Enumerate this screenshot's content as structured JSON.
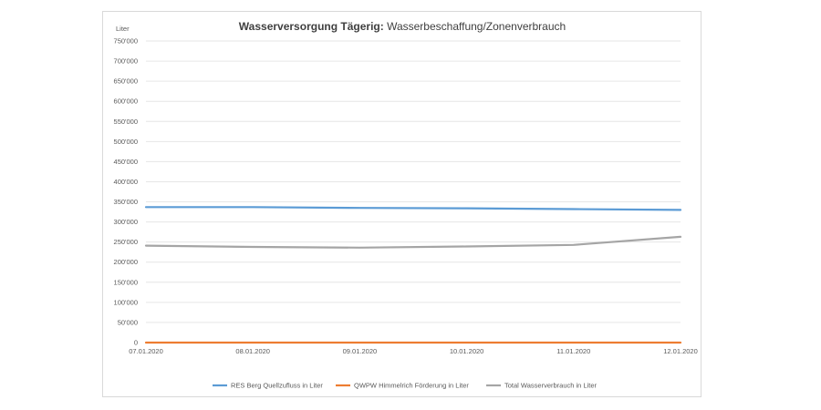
{
  "chart_data": {
    "type": "line",
    "title_bold": "Wasserversorgung Tägerig:",
    "title_rest": " Wasserbeschaffung/Zonenverbrauch",
    "ylabel": "Liter",
    "x": [
      "07.01.2020",
      "08.01.2020",
      "09.01.2020",
      "10.01.2020",
      "11.01.2020",
      "12.01.2020"
    ],
    "ylim": [
      0,
      750000
    ],
    "yticks": [
      0,
      50000,
      100000,
      150000,
      200000,
      250000,
      300000,
      350000,
      400000,
      450000,
      500000,
      550000,
      600000,
      650000,
      700000,
      750000
    ],
    "ytick_labels": [
      "0",
      "50'000",
      "100'000",
      "150'000",
      "200'000",
      "250'000",
      "300'000",
      "350'000",
      "400'000",
      "450'000",
      "500'000",
      "550'000",
      "600'000",
      "650'000",
      "700'000",
      "750'000"
    ],
    "grid": true,
    "legend_position": "bottom",
    "series": [
      {
        "name": "RES Berg Quellzufluss in Liter",
        "color": "#5b9bd5",
        "values": [
          337000,
          337000,
          335000,
          334000,
          332000,
          330000
        ]
      },
      {
        "name": "QWPW Himmelrich Förderung in Liter",
        "color": "#ed7d31",
        "values": [
          0,
          0,
          0,
          0,
          0,
          0
        ]
      },
      {
        "name": "Total Wasserverbrauch in Liter",
        "color": "#a5a5a5",
        "values": [
          241000,
          238000,
          236000,
          239000,
          243000,
          263000
        ]
      }
    ]
  }
}
